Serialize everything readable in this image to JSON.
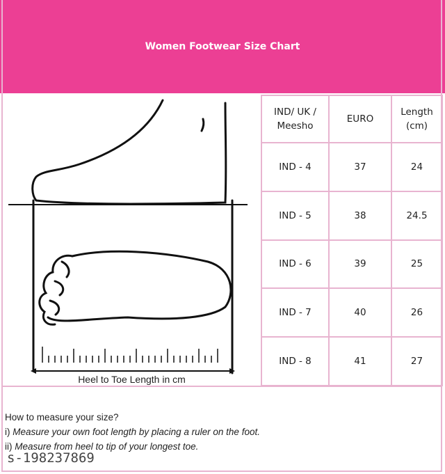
{
  "header": {
    "title": "Women Footwear Size Chart",
    "color": "#ec3f94"
  },
  "illustration": {
    "caption": "Heel to Toe Length in cm"
  },
  "table": {
    "columns": [
      "IND/ UK / Meesho",
      "EURO",
      "Length (cm)"
    ],
    "rows": [
      [
        "IND - 4",
        "37",
        "24"
      ],
      [
        "IND - 5",
        "38",
        "24.5"
      ],
      [
        "IND - 6",
        "39",
        "25"
      ],
      [
        "IND - 7",
        "40",
        "26"
      ],
      [
        "IND - 8",
        "41",
        "27"
      ]
    ]
  },
  "notes": {
    "heading": "How to measure your size?",
    "step1_prefix": "i) ",
    "step1": "Measure your own foot length by placing a ruler on the foot.",
    "step2_prefix": "ii) ",
    "step2": "Measure from heel to tip of your longest toe."
  },
  "sku": "s-198237869"
}
